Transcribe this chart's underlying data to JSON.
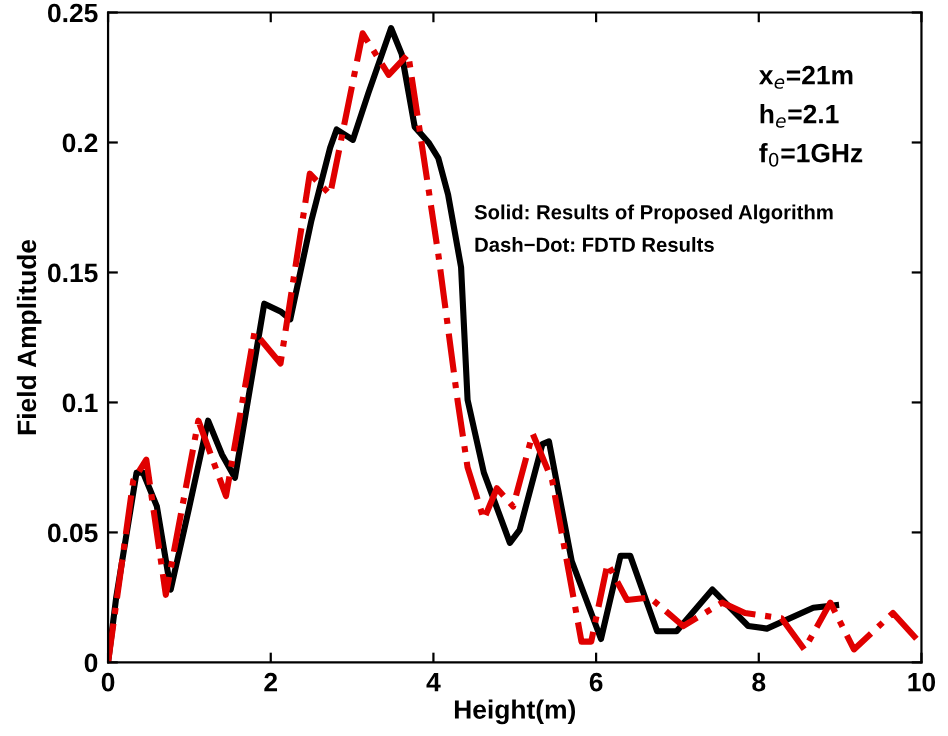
{
  "chart_data": {
    "type": "line",
    "xlabel": "Height(m)",
    "ylabel": "Field Amplitude",
    "xlim": [
      0,
      10
    ],
    "ylim": [
      0,
      0.25
    ],
    "xticks": [
      0,
      2,
      4,
      6,
      8,
      10
    ],
    "yticks": [
      0,
      0.05,
      0.1,
      0.15,
      0.2,
      0.25
    ],
    "grid": false,
    "legend": false,
    "annotations": [
      "x$_{e}$=21m",
      "h$_{e}$=2.1",
      "f$_{0}$=1GHz",
      "Solid: Results of Proposed Algorithm",
      "Dash−Dot: FDTD Results"
    ],
    "series": [
      {
        "color": "#000000",
        "line_style": "solid",
        "x": [
          0,
          0.1,
          0.35,
          0.43,
          0.6,
          0.77,
          1.0,
          1.23,
          1.4,
          1.56,
          1.92,
          2.12,
          2.24,
          2.5,
          2.73,
          2.81,
          3.01,
          3.2,
          3.48,
          3.61,
          3.77,
          3.94,
          4.06,
          4.18,
          4.34,
          4.42,
          4.62,
          4.94,
          5.06,
          5.34,
          5.42,
          5.7,
          6.06,
          6.3,
          6.42,
          6.75,
          6.99,
          7.43,
          7.87,
          8.1,
          8.67,
          8.95
        ],
        "values": [
          0,
          0.025,
          0.073,
          0.073,
          0.06,
          0.028,
          0.06,
          0.093,
          0.08,
          0.071,
          0.138,
          0.135,
          0.132,
          0.17,
          0.198,
          0.205,
          0.201,
          0.219,
          0.244,
          0.234,
          0.206,
          0.2,
          0.194,
          0.18,
          0.152,
          0.101,
          0.073,
          0.046,
          0.051,
          0.084,
          0.085,
          0.039,
          0.009,
          0.041,
          0.041,
          0.012,
          0.012,
          0.028,
          0.014,
          0.013,
          0.021,
          0.022
        ]
      },
      {
        "color": "#e00000",
        "line_style": "dashdot",
        "x": [
          0,
          0.31,
          0.47,
          0.71,
          1.11,
          1.45,
          1.8,
          2.12,
          2.48,
          2.73,
          3.13,
          3.45,
          3.69,
          4.06,
          4.3,
          4.42,
          4.62,
          4.78,
          4.98,
          5.22,
          5.46,
          5.82,
          5.94,
          6.14,
          6.38,
          6.66,
          7.07,
          7.55,
          7.83,
          8.28,
          8.56,
          8.88,
          9.17,
          9.65,
          9.97
        ],
        "values": [
          0,
          0.07,
          0.078,
          0.026,
          0.093,
          0.064,
          0.127,
          0.115,
          0.188,
          0.18,
          0.242,
          0.226,
          0.234,
          0.157,
          0.1,
          0.075,
          0.055,
          0.067,
          0.06,
          0.088,
          0.07,
          0.008,
          0.008,
          0.038,
          0.024,
          0.025,
          0.014,
          0.023,
          0.019,
          0.017,
          0.005,
          0.023,
          0.005,
          0.019,
          0.008
        ]
      }
    ]
  }
}
